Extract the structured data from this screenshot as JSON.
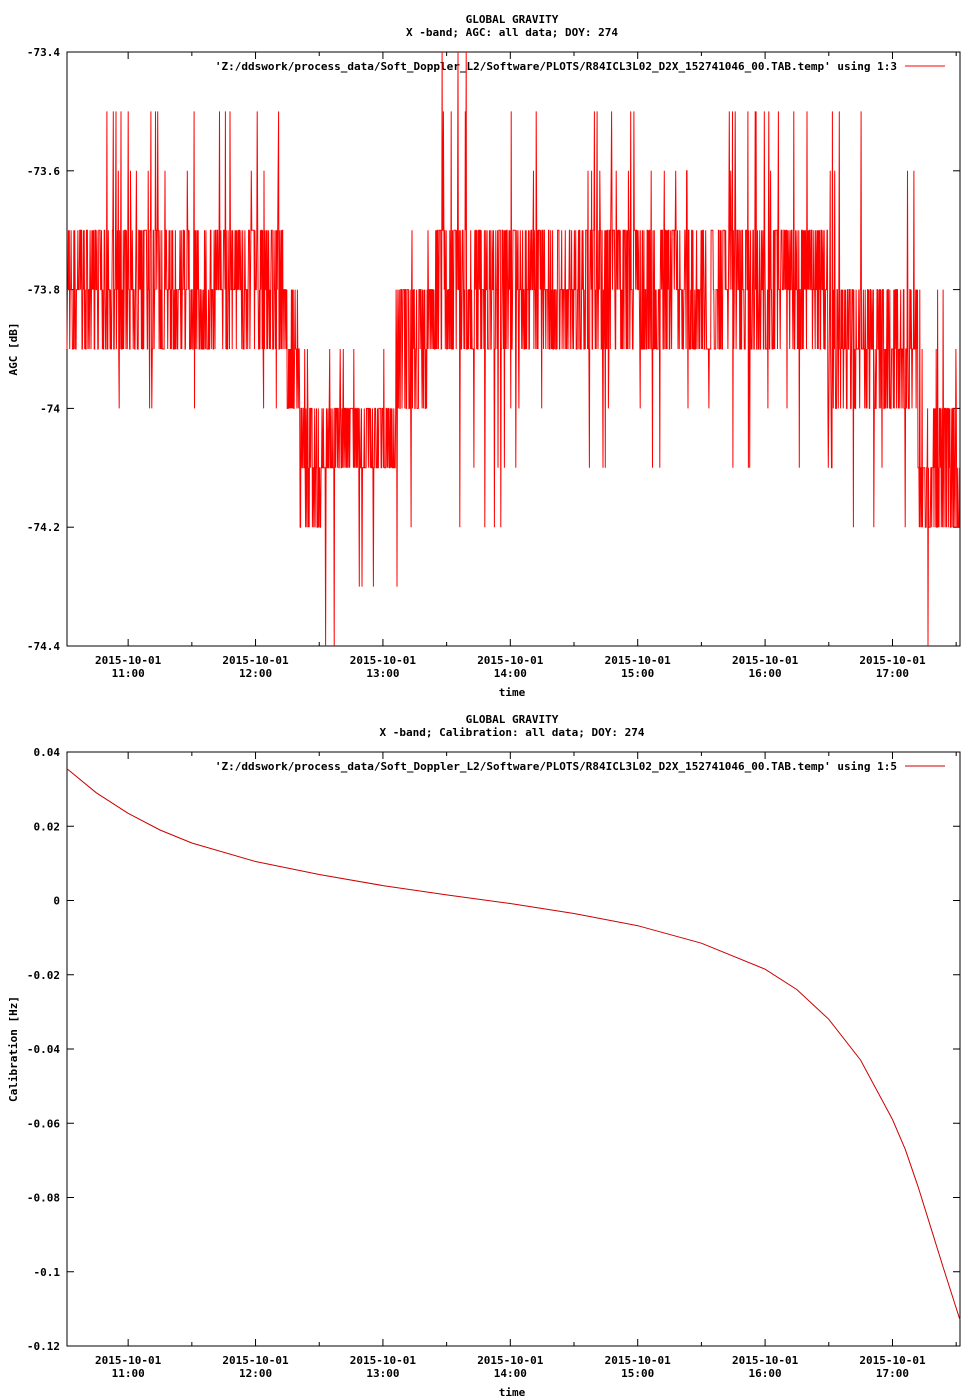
{
  "charts": [
    {
      "type": "line",
      "title": "GLOBAL GRAVITY",
      "subtitle": "X -band; AGC: all data; DOY: 274",
      "xlabel": "time",
      "ylabel": "AGC [dB]",
      "legend_label": "'Z:/ddswork/process_data/Soft_Doppler_L2/Software/PLOTS/R84ICL3L02_D2X_152741046_00.TAB.temp' using 1:3",
      "legend_position": "top-right",
      "series_color": "#ff0000",
      "ylim": [
        -74.4,
        -73.4
      ],
      "y_ticks": [
        -73.4,
        -73.6,
        -73.8,
        -74,
        -74.2,
        -74.4
      ],
      "y_tick_labels": [
        "-73.4",
        "-73.6",
        "-73.8",
        "-74",
        "-74.2",
        "-74.4"
      ],
      "x_range_hours": [
        10.52,
        17.53
      ],
      "x_ticks_hours": [
        11,
        12,
        13,
        14,
        15,
        16,
        17
      ],
      "x_tick_dates": [
        "2015-10-01",
        "2015-10-01",
        "2015-10-01",
        "2015-10-01",
        "2015-10-01",
        "2015-10-01",
        "2015-10-01"
      ],
      "x_tick_times": [
        "11:00",
        "12:00",
        "13:00",
        "14:00",
        "15:00",
        "16:00",
        "17:00"
      ],
      "segments": [
        {
          "x0": 10.52,
          "x1": 11.25,
          "values": [
            -73.7,
            -73.8,
            -73.9
          ],
          "spike_min": -74.1,
          "spike_max": -73.5
        },
        {
          "x0": 11.25,
          "x1": 12.22,
          "values": [
            -73.7,
            -73.8,
            -73.9
          ],
          "spike_min": -74.0,
          "spike_max": -73.5
        },
        {
          "x0": 12.22,
          "x1": 12.35,
          "values": [
            -73.8,
            -73.9,
            -74.0
          ],
          "spike_min": -74.1,
          "spike_max": -73.8
        },
        {
          "x0": 12.35,
          "x1": 12.55,
          "values": [
            -74.0,
            -74.1,
            -74.2
          ],
          "spike_min": -74.2,
          "spike_max": -73.9
        },
        {
          "x0": 12.55,
          "x1": 13.1,
          "values": [
            -74.0,
            -74.1
          ],
          "spike_min": -74.4,
          "spike_max": -73.9
        },
        {
          "x0": 13.1,
          "x1": 13.4,
          "values": [
            -73.8,
            -73.9,
            -74.0
          ],
          "spike_min": -74.3,
          "spike_max": -73.7
        },
        {
          "x0": 13.4,
          "x1": 14.0,
          "values": [
            -73.7,
            -73.8,
            -73.9
          ],
          "spike_min": -74.2,
          "spike_max": -73.4
        },
        {
          "x0": 14.0,
          "x1": 16.5,
          "values": [
            -73.7,
            -73.8,
            -73.9
          ],
          "spike_min": -74.1,
          "spike_max": -73.5
        },
        {
          "x0": 16.5,
          "x1": 17.2,
          "values": [
            -73.8,
            -73.9,
            -74.0
          ],
          "spike_min": -74.2,
          "spike_max": -73.5
        },
        {
          "x0": 17.2,
          "x1": 17.53,
          "values": [
            -74.0,
            -74.1,
            -74.2
          ],
          "spike_min": -74.4,
          "spike_max": -73.8
        }
      ]
    },
    {
      "type": "line",
      "title": "GLOBAL GRAVITY",
      "subtitle": "X -band; Calibration: all data; DOY: 274",
      "xlabel": "time",
      "ylabel": "Calibration [Hz]",
      "legend_label": "'Z:/ddswork/process_data/Soft_Doppler_L2/Software/PLOTS/R84ICL3L02_D2X_152741046_00.TAB.temp' using 1:5",
      "legend_position": "top-right",
      "series_color": "#cc0000",
      "ylim": [
        -0.12,
        0.04
      ],
      "y_ticks": [
        0.04,
        0.02,
        0,
        -0.02,
        -0.04,
        -0.06,
        -0.08,
        -0.1,
        -0.12
      ],
      "y_tick_labels": [
        "0.04",
        "0.02",
        "0",
        "-0.02",
        "-0.04",
        "-0.06",
        "-0.08",
        "-0.1",
        "-0.12"
      ],
      "x_range_hours": [
        10.52,
        17.53
      ],
      "x_ticks_hours": [
        11,
        12,
        13,
        14,
        15,
        16,
        17
      ],
      "x_tick_dates": [
        "2015-10-01",
        "2015-10-01",
        "2015-10-01",
        "2015-10-01",
        "2015-10-01",
        "2015-10-01",
        "2015-10-01"
      ],
      "x_tick_times": [
        "11:00",
        "12:00",
        "13:00",
        "14:00",
        "15:00",
        "16:00",
        "17:00"
      ],
      "x": [
        10.52,
        10.75,
        11.0,
        11.25,
        11.5,
        12.0,
        12.5,
        13.0,
        13.5,
        14.0,
        14.5,
        15.0,
        15.5,
        16.0,
        16.25,
        16.5,
        16.75,
        17.0,
        17.1,
        17.2,
        17.3,
        17.4,
        17.53
      ],
      "y": [
        0.0355,
        0.029,
        0.0235,
        0.019,
        0.0155,
        0.0105,
        0.007,
        0.004,
        0.0015,
        -0.0008,
        -0.0035,
        -0.0068,
        -0.0115,
        -0.0185,
        -0.024,
        -0.032,
        -0.043,
        -0.059,
        -0.067,
        -0.077,
        -0.088,
        -0.099,
        -0.113
      ]
    }
  ]
}
